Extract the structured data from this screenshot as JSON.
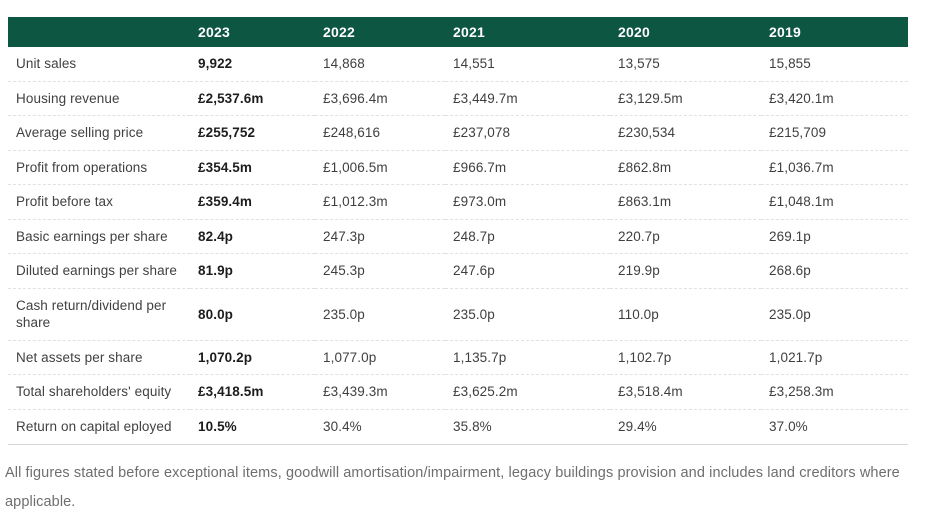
{
  "colors": {
    "header_bg": "#0d5642",
    "header_text": "#ffffff",
    "row_border": "#e1e1e1",
    "label_text": "#414141",
    "value_text": "#3f3f3f",
    "current_year_text": "#1d1d1d",
    "footnote_text": "#6e6e6e"
  },
  "table": {
    "corner_label": "",
    "years": [
      "2023",
      "2022",
      "2021",
      "2020",
      "2019"
    ],
    "rows": [
      {
        "label": "Unit sales",
        "values": [
          "9,922",
          "14,868",
          "14,551",
          "13,575",
          "15,855"
        ]
      },
      {
        "label": "Housing revenue",
        "values": [
          "£2,537.6m",
          "£3,696.4m",
          "£3,449.7m",
          "£3,129.5m",
          "£3,420.1m"
        ]
      },
      {
        "label": "Average selling price",
        "values": [
          "£255,752",
          "£248,616",
          "£237,078",
          "£230,534",
          "£215,709"
        ]
      },
      {
        "label": "Profit from operations",
        "values": [
          "£354.5m",
          "£1,006.5m",
          "£966.7m",
          "£862.8m",
          "£1,036.7m"
        ]
      },
      {
        "label": "Profit before tax",
        "values": [
          "£359.4m",
          "£1,012.3m",
          "£973.0m",
          "£863.1m",
          "£1,048.1m"
        ]
      },
      {
        "label": "Basic earnings per share",
        "values": [
          "82.4p",
          "247.3p",
          "248.7p",
          "220.7p",
          "269.1p"
        ]
      },
      {
        "label": "Diluted earnings per share",
        "values": [
          "81.9p",
          "245.3p",
          "247.6p",
          "219.9p",
          "268.6p"
        ]
      },
      {
        "label": "Cash return/dividend per share",
        "values": [
          "80.0p",
          "235.0p",
          "235.0p",
          "110.0p",
          "235.0p"
        ]
      },
      {
        "label": "Net assets per share",
        "values": [
          "1,070.2p",
          "1,077.0p",
          "1,135.7p",
          "1,102.7p",
          "1,021.7p"
        ]
      },
      {
        "label": "Total shareholders' equity",
        "values": [
          "£3,418.5m",
          "£3,439.3m",
          "£3,625.2m",
          "£3,518.4m",
          "£3,258.3m"
        ]
      },
      {
        "label": "Return on capital eployed",
        "values": [
          "10.5%",
          "30.4%",
          "35.8%",
          "29.4%",
          "37.0%"
        ]
      }
    ]
  },
  "footnote": "All figures stated before exceptional items, goodwill amortisation/impairment, legacy buildings provision and includes land creditors where applicable.",
  "chart_data": {
    "type": "table",
    "categories": [
      "2023",
      "2022",
      "2021",
      "2020",
      "2019"
    ],
    "series": [
      {
        "name": "Unit sales",
        "values": [
          "9,922",
          "14,868",
          "14,551",
          "13,575",
          "15,855"
        ]
      },
      {
        "name": "Housing revenue",
        "values": [
          "£2,537.6m",
          "£3,696.4m",
          "£3,449.7m",
          "£3,129.5m",
          "£3,420.1m"
        ]
      },
      {
        "name": "Average selling price",
        "values": [
          "£255,752",
          "£248,616",
          "£237,078",
          "£230,534",
          "£215,709"
        ]
      },
      {
        "name": "Profit from operations",
        "values": [
          "£354.5m",
          "£1,006.5m",
          "£966.7m",
          "£862.8m",
          "£1,036.7m"
        ]
      },
      {
        "name": "Profit before tax",
        "values": [
          "£359.4m",
          "£1,012.3m",
          "£973.0m",
          "£863.1m",
          "£1,048.1m"
        ]
      },
      {
        "name": "Basic earnings per share",
        "values": [
          "82.4p",
          "247.3p",
          "248.7p",
          "220.7p",
          "269.1p"
        ]
      },
      {
        "name": "Diluted earnings per share",
        "values": [
          "81.9p",
          "245.3p",
          "247.6p",
          "219.9p",
          "268.6p"
        ]
      },
      {
        "name": "Cash return/dividend per share",
        "values": [
          "80.0p",
          "235.0p",
          "235.0p",
          "110.0p",
          "235.0p"
        ]
      },
      {
        "name": "Net assets per share",
        "values": [
          "1,070.2p",
          "1,077.0p",
          "1,135.7p",
          "1,102.7p",
          "1,021.7p"
        ]
      },
      {
        "name": "Total shareholders' equity",
        "values": [
          "£3,418.5m",
          "£3,439.3m",
          "£3,625.2m",
          "£3,518.4m",
          "£3,258.3m"
        ]
      },
      {
        "name": "Return on capital eployed",
        "values": [
          "10.5%",
          "30.4%",
          "35.8%",
          "29.4%",
          "37.0%"
        ]
      }
    ],
    "notes": "Five-year financial summary table; 2023 column shown in bold; dark green header band"
  }
}
